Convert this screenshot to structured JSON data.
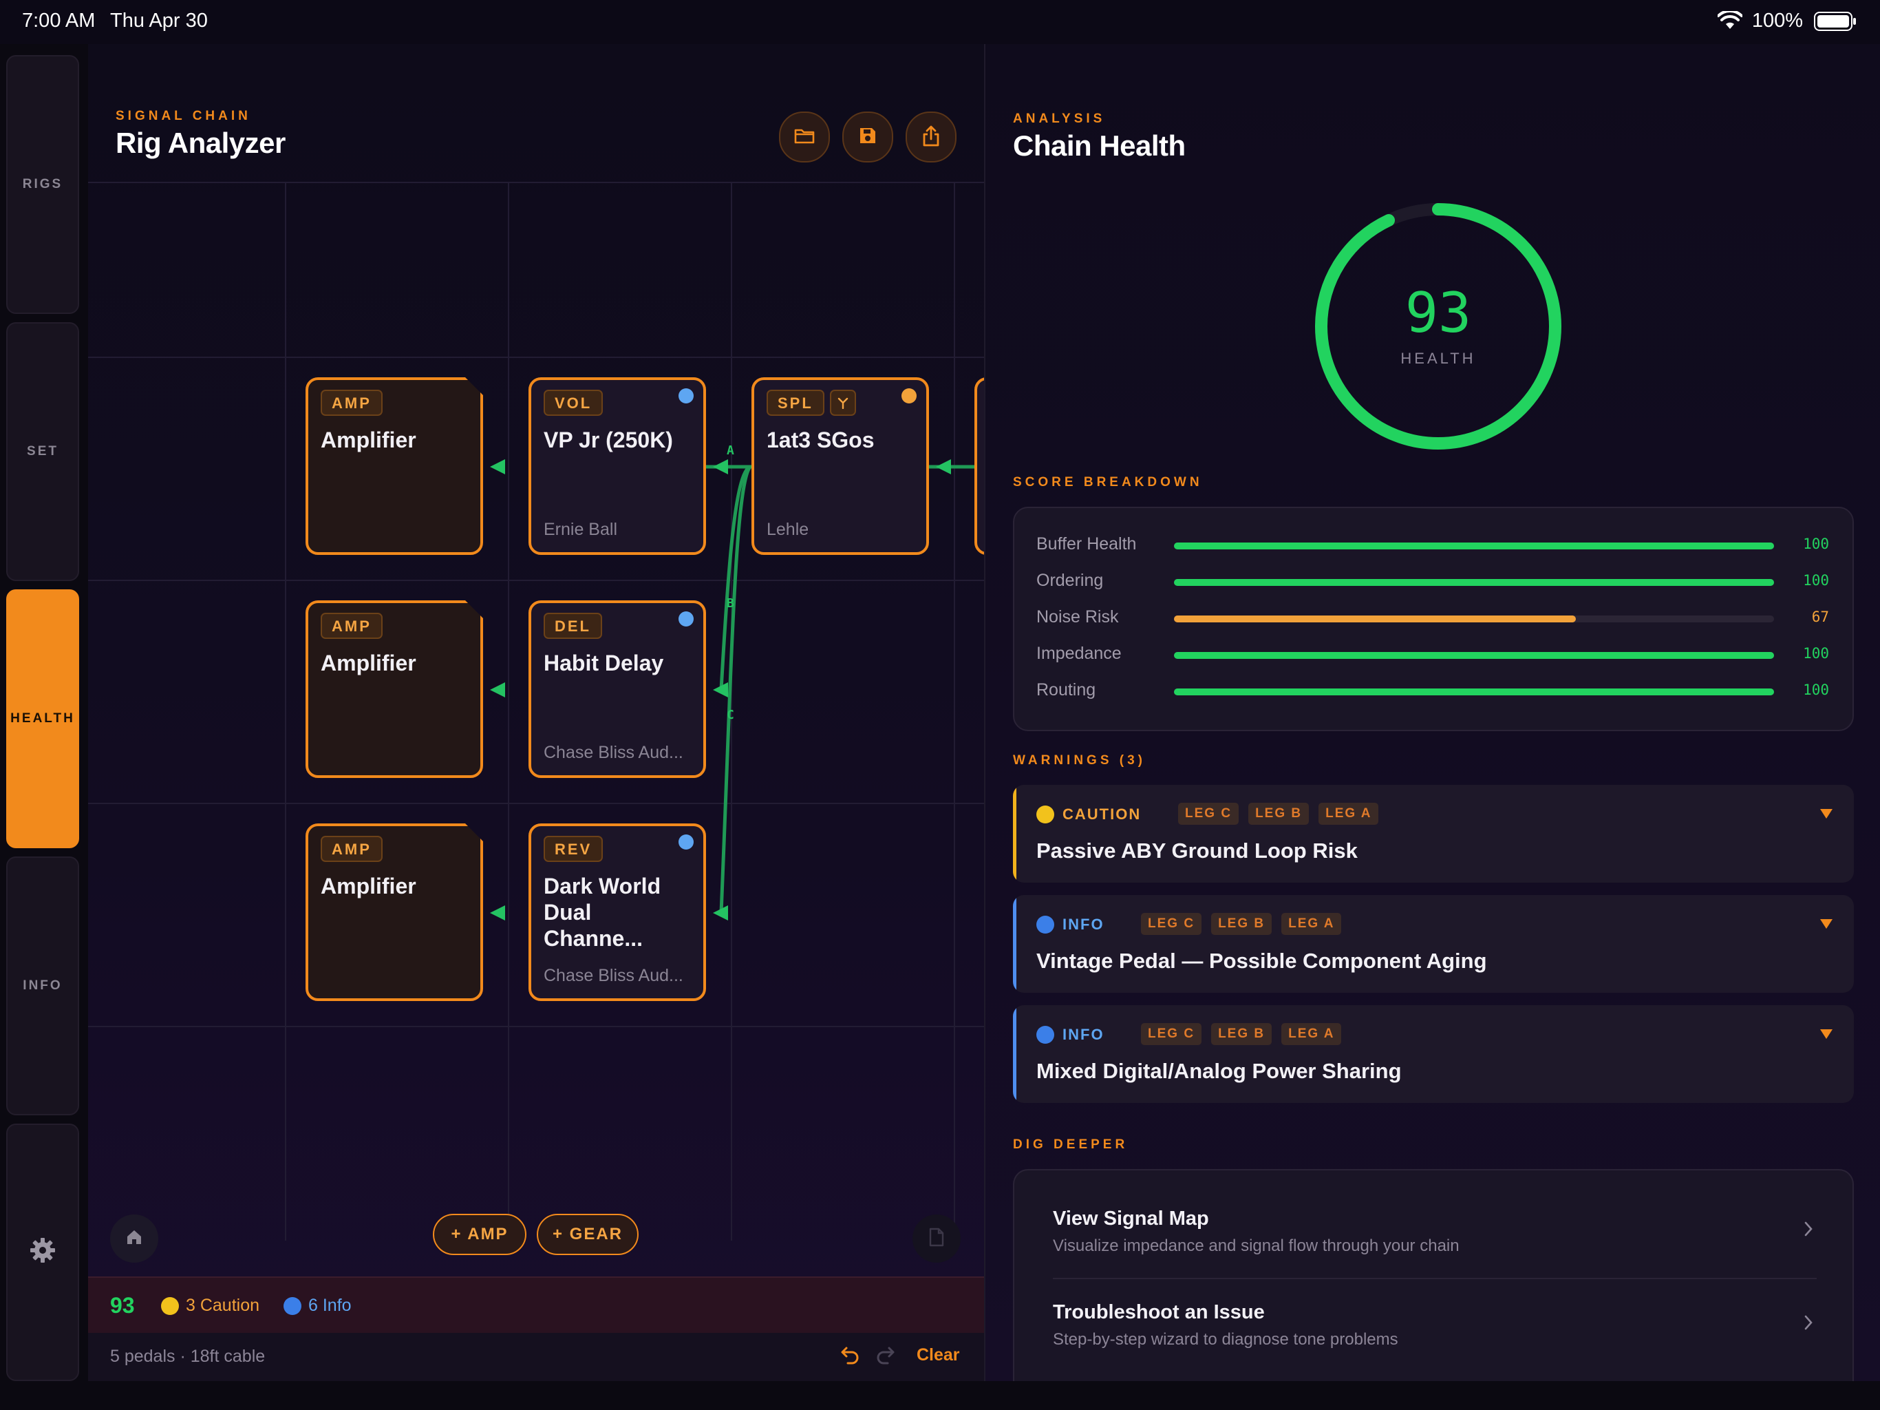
{
  "status": {
    "time": "7:00 AM",
    "date": "Thu Apr 30",
    "battery": "100%"
  },
  "rail": {
    "items": [
      {
        "label": "RIGS",
        "active": false
      },
      {
        "label": "SET",
        "active": false
      },
      {
        "label": "HEALTH",
        "active": true
      },
      {
        "label": "INFO",
        "active": false
      }
    ]
  },
  "chain": {
    "eyebrow": "SIGNAL CHAIN",
    "title": "Rig Analyzer",
    "actions": [
      "folder-icon",
      "save-icon",
      "share-icon"
    ],
    "cards": [
      {
        "tag": "AMP",
        "name": "Amplifier",
        "maker": ""
      },
      {
        "tag": "VOL",
        "name": "VP Jr (250K)",
        "maker": "Ernie Ball",
        "dot": "#5ea6f2"
      },
      {
        "tag": "SPL",
        "name": "1at3 SGos",
        "maker": "Lehle",
        "dot": "#f2a23a"
      },
      {
        "tag": "AMP",
        "name": "Amplifier",
        "maker": ""
      },
      {
        "tag": "DEL",
        "name": "Habit Delay",
        "maker": "Chase Bliss Aud...",
        "dot": "#5ea6f2"
      },
      {
        "tag": "AMP",
        "name": "Amplifier",
        "maker": ""
      },
      {
        "tag": "REV",
        "name": "Dark World\nDual Channe...",
        "maker": "Chase Bliss Aud...",
        "dot": "#5ea6f2"
      }
    ],
    "leg_labels": [
      "A",
      "B",
      "C"
    ],
    "add_amp": "+ AMP",
    "add_gear": "+ GEAR",
    "summary": {
      "score": "93",
      "caution": "3 Caution",
      "info": "6 Info"
    },
    "footer": {
      "meta": "5 pedals · 18ft cable",
      "clear": "Clear"
    }
  },
  "analysis": {
    "eyebrow": "ANALYSIS",
    "title": "Chain Health",
    "score": 93,
    "score_text": "93",
    "score_label": "HEALTH",
    "breakdown_title": "SCORE BREAKDOWN",
    "breakdown": [
      {
        "label": "Buffer Health",
        "value": 100,
        "value_text": "100",
        "color": "#22d35f"
      },
      {
        "label": "Ordering",
        "value": 100,
        "value_text": "100",
        "color": "#22d35f"
      },
      {
        "label": "Noise Risk",
        "value": 67,
        "value_text": "67",
        "color": "#f2a23a"
      },
      {
        "label": "Impedance",
        "value": 100,
        "value_text": "100",
        "color": "#22d35f"
      },
      {
        "label": "Routing",
        "value": 100,
        "value_text": "100",
        "color": "#22d35f"
      }
    ],
    "warnings_title": "WARNINGS (3)",
    "warnings": [
      {
        "severity": "CAUTION",
        "color": "#f2b21c",
        "legs": [
          "LEG C",
          "LEG B",
          "LEG A"
        ],
        "title": "Passive ABY Ground Loop Risk"
      },
      {
        "severity": "INFO",
        "color": "#4f8ff0",
        "legs": [
          "LEG C",
          "LEG B",
          "LEG A"
        ],
        "title": "Vintage Pedal — Possible Component Aging"
      },
      {
        "severity": "INFO",
        "color": "#4f8ff0",
        "legs": [
          "LEG C",
          "LEG B",
          "LEG A"
        ],
        "title": "Mixed Digital/Analog Power Sharing"
      }
    ],
    "deeper_title": "DIG DEEPER",
    "deeper": [
      {
        "title": "View Signal Map",
        "subtitle": "Visualize impedance and signal flow through your chain"
      },
      {
        "title": "Troubleshoot an Issue",
        "subtitle": "Step-by-step wizard to diagnose tone problems"
      }
    ]
  },
  "colors": {
    "accent": "#f28a1c",
    "good": "#22d35f",
    "info": "#4f8ff0",
    "caution": "#f2b21c"
  }
}
